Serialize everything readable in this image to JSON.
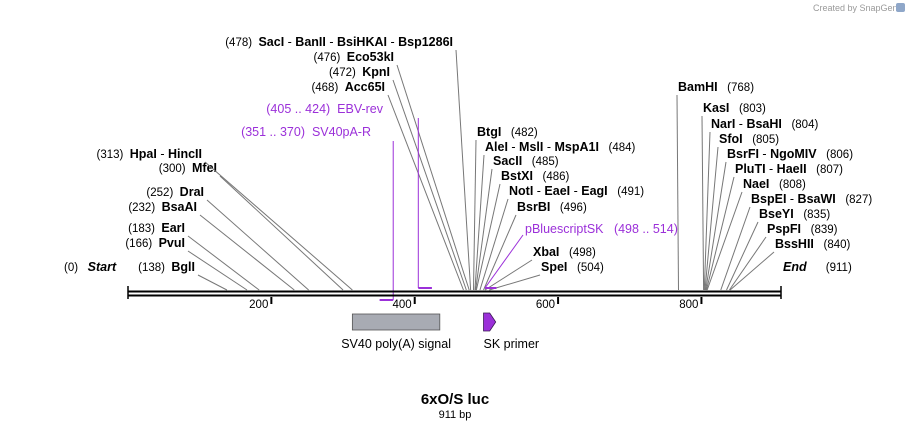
{
  "credit": "Created by SnapGene",
  "plasmid": {
    "name": "6xO/S luc",
    "length_label": "911 bp",
    "length": 911
  },
  "axis": {
    "ticks": [
      200,
      400,
      600,
      800
    ]
  },
  "ends": [
    {
      "pos": 0,
      "pos_label": "(0)",
      "name": "Start",
      "side": "left"
    },
    {
      "pos": 911,
      "pos_label": "(911)",
      "name": "End",
      "side": "right"
    }
  ],
  "sites": [
    {
      "label": "BglI",
      "pos": 138,
      "names": [
        "BglI"
      ],
      "pos_label": "(138)",
      "side": "left"
    },
    {
      "label": "PvuI",
      "pos": 166,
      "names": [
        "PvuI"
      ],
      "pos_label": "(166)",
      "side": "left"
    },
    {
      "label": "EarI",
      "pos": 183,
      "names": [
        "EarI"
      ],
      "pos_label": "(183)",
      "side": "left"
    },
    {
      "label": "BsaAI",
      "pos": 232,
      "names": [
        "BsaAI"
      ],
      "pos_label": "(232)",
      "side": "left"
    },
    {
      "label": "DraI",
      "pos": 252,
      "names": [
        "DraI"
      ],
      "pos_label": "(252)",
      "side": "left"
    },
    {
      "label": "MfeI",
      "pos": 300,
      "names": [
        "MfeI"
      ],
      "pos_label": "(300)",
      "side": "left"
    },
    {
      "label": "HpaI - HincII",
      "pos": 313,
      "names": [
        "HpaI",
        "HincII"
      ],
      "pos_label": "(313)",
      "side": "left"
    },
    {
      "label": "Acc65I",
      "pos": 468,
      "names": [
        "Acc65I"
      ],
      "pos_label": "(468)",
      "side": "left"
    },
    {
      "label": "KpnI",
      "pos": 472,
      "names": [
        "KpnI"
      ],
      "pos_label": "(472)",
      "side": "left"
    },
    {
      "label": "Eco53kI",
      "pos": 476,
      "names": [
        "Eco53kI"
      ],
      "pos_label": "(476)",
      "side": "left"
    },
    {
      "label": "SacI - BanII - BsiHKAI - Bsp1286I",
      "pos": 478,
      "names": [
        "SacI",
        "BanII",
        "BsiHKAI",
        "Bsp1286I"
      ],
      "pos_label": "(478)",
      "side": "left"
    },
    {
      "label": "BtgI",
      "pos": 482,
      "names": [
        "BtgI"
      ],
      "pos_label": "(482)",
      "side": "right"
    },
    {
      "label": "AleI - MslI - MspA1I",
      "pos": 484,
      "names": [
        "AleI",
        "MslI",
        "MspA1I"
      ],
      "pos_label": "(484)",
      "side": "right"
    },
    {
      "label": "SacII",
      "pos": 485,
      "names": [
        "SacII"
      ],
      "pos_label": "(485)",
      "side": "right"
    },
    {
      "label": "BstXI",
      "pos": 486,
      "names": [
        "BstXI"
      ],
      "pos_label": "(486)",
      "side": "right"
    },
    {
      "label": "NotI - EaeI - EagI",
      "pos": 491,
      "names": [
        "NotI",
        "EaeI",
        "EagI"
      ],
      "pos_label": "(491)",
      "side": "right"
    },
    {
      "label": "BsrBI",
      "pos": 496,
      "names": [
        "BsrBI"
      ],
      "pos_label": "(496)",
      "side": "right"
    },
    {
      "label": "XbaI",
      "pos": 498,
      "names": [
        "XbaI"
      ],
      "pos_label": "(498)",
      "side": "right"
    },
    {
      "label": "SpeI",
      "pos": 504,
      "names": [
        "SpeI"
      ],
      "pos_label": "(504)",
      "side": "right"
    },
    {
      "label": "BamHI",
      "pos": 768,
      "names": [
        "BamHI"
      ],
      "pos_label": "(768)",
      "side": "right"
    },
    {
      "label": "KasI",
      "pos": 803,
      "names": [
        "KasI"
      ],
      "pos_label": "(803)",
      "side": "right"
    },
    {
      "label": "NarI - BsaHI",
      "pos": 804,
      "names": [
        "NarI",
        "BsaHI"
      ],
      "pos_label": "(804)",
      "side": "right"
    },
    {
      "label": "SfoI",
      "pos": 805,
      "names": [
        "SfoI"
      ],
      "pos_label": "(805)",
      "side": "right"
    },
    {
      "label": "BsrFI - NgoMIV",
      "pos": 806,
      "names": [
        "BsrFI",
        "NgoMIV"
      ],
      "pos_label": "(806)",
      "side": "right"
    },
    {
      "label": "PluTI - HaeII",
      "pos": 807,
      "names": [
        "PluTI",
        "HaeII"
      ],
      "pos_label": "(807)",
      "side": "right"
    },
    {
      "label": "NaeI",
      "pos": 808,
      "names": [
        "NaeI"
      ],
      "pos_label": "(808)",
      "side": "right"
    },
    {
      "label": "BspEI - BsaWI",
      "pos": 827,
      "names": [
        "BspEI",
        "BsaWI"
      ],
      "pos_label": "(827)",
      "side": "right"
    },
    {
      "label": "BseYI",
      "pos": 835,
      "names": [
        "BseYI"
      ],
      "pos_label": "(835)",
      "side": "right"
    },
    {
      "label": "PspFI",
      "pos": 839,
      "names": [
        "PspFI"
      ],
      "pos_label": "(839)",
      "side": "right"
    },
    {
      "label": "BssHII",
      "pos": 840,
      "names": [
        "BssHII"
      ],
      "pos_label": "(840)",
      "side": "right"
    }
  ],
  "primers": [
    {
      "name": "EBV-rev",
      "range_label": "(405 .. 424)",
      "start": 405,
      "end": 424,
      "strand": "forward",
      "color": "#9b30d9"
    },
    {
      "name": "SV40pA-R",
      "range_label": "(351 .. 370)",
      "start": 351,
      "end": 370,
      "strand": "reverse",
      "color": "#9b30d9"
    },
    {
      "name": "pBluescriptSK",
      "range_label": "(498 .. 514)",
      "start": 498,
      "end": 514,
      "strand": "forward",
      "color": "#9b30d9"
    }
  ],
  "features": [
    {
      "name": "SV40 poly(A) signal",
      "start": 313,
      "end": 435,
      "type": "polyA_signal",
      "color": "#a8abb3"
    },
    {
      "name": "SK primer",
      "start": 496,
      "end": 513,
      "type": "primer_bind",
      "color": "#9b30d9"
    }
  ]
}
